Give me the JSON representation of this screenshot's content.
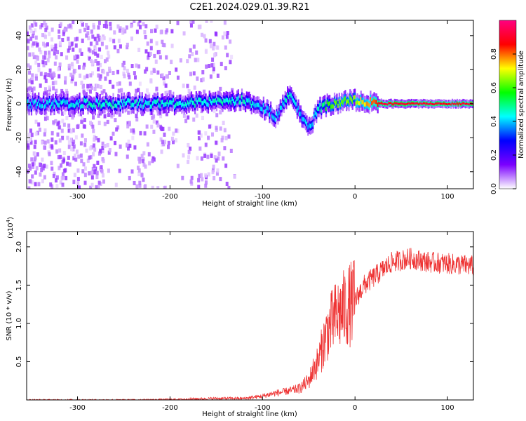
{
  "title": "C2E1.2024.029.01.39.R21",
  "chart_data": [
    {
      "type": "heatmap",
      "xlabel": "Height of straight line (km)",
      "ylabel": "Frequency (Hz)",
      "xlim": [
        -355,
        128
      ],
      "ylim": [
        -50,
        49
      ],
      "x_ticks": [
        -300,
        -200,
        -100,
        0,
        100
      ],
      "y_ticks": [
        -40,
        -20,
        0,
        20,
        40
      ],
      "colorbar": {
        "label": "Normalized spectral amplitude",
        "range": [
          0,
          1
        ],
        "ticks": [
          0.0,
          0.2,
          0.4,
          0.6,
          0.8
        ],
        "colors": [
          "#ffffff",
          "#7b00ff",
          "#0000ff",
          "#00ffff",
          "#00ff00",
          "#ffff00",
          "#ff0000",
          "#ff0080"
        ]
      },
      "ridge": [
        {
          "x": -350,
          "y": 0,
          "amp": 0.4
        },
        {
          "x": -270,
          "y": 0,
          "amp": 0.45
        },
        {
          "x": -200,
          "y": 0,
          "amp": 0.45
        },
        {
          "x": -150,
          "y": 1,
          "amp": 0.45
        },
        {
          "x": -120,
          "y": 2,
          "amp": 0.45
        },
        {
          "x": -100,
          "y": -2,
          "amp": 0.4
        },
        {
          "x": -85,
          "y": -8,
          "amp": 0.4
        },
        {
          "x": -70,
          "y": 7,
          "amp": 0.45
        },
        {
          "x": -60,
          "y": -5,
          "amp": 0.4
        },
        {
          "x": -48,
          "y": -14,
          "amp": 0.4
        },
        {
          "x": -40,
          "y": -3,
          "amp": 0.45
        },
        {
          "x": -25,
          "y": 0,
          "amp": 0.6
        },
        {
          "x": 0,
          "y": 2,
          "amp": 0.65
        },
        {
          "x": 30,
          "y": 0,
          "amp": 0.9
        },
        {
          "x": 128,
          "y": 0,
          "amp": 0.9
        }
      ]
    },
    {
      "type": "line",
      "xlabel": "Height of straight line (km)",
      "ylabel": "SNR (10 * v/v)",
      "y_multiplier": "(x10",
      "y_multiplier_exp": "4",
      "xlim": [
        -355,
        128
      ],
      "ylim": [
        0,
        2.2
      ],
      "x_ticks": [
        -300,
        -200,
        -100,
        0,
        100
      ],
      "y_ticks": [
        0.5,
        1.0,
        1.5,
        2.0
      ],
      "color": "#ee3333",
      "series": [
        {
          "x": [
            -355,
            -300,
            -250,
            -200,
            -150,
            -120,
            -100,
            -90,
            -80,
            -70,
            -60,
            -50,
            -45,
            -40,
            -35,
            -30,
            -25,
            -20,
            -10,
            0,
            10,
            20,
            30,
            40,
            60,
            80,
            100,
            128
          ],
          "y": [
            0.0,
            0.0,
            0.0,
            0.005,
            0.02,
            0.02,
            0.05,
            0.08,
            0.1,
            0.12,
            0.15,
            0.25,
            0.4,
            0.5,
            0.7,
            0.9,
            1.0,
            1.1,
            1.2,
            1.3,
            1.5,
            1.6,
            1.7,
            1.8,
            1.85,
            1.8,
            1.78,
            1.75
          ]
        }
      ]
    }
  ]
}
